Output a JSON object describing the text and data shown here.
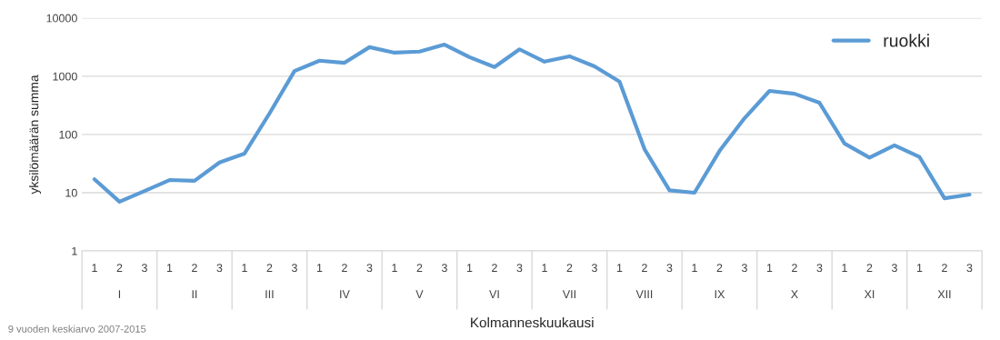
{
  "chart_data": {
    "type": "line",
    "xlabel": "Kolmanneskuukausi",
    "ylabel": "yksilömäärän summa",
    "categories": [
      "1",
      "2",
      "3",
      "1",
      "2",
      "3",
      "1",
      "2",
      "3",
      "1",
      "2",
      "3",
      "1",
      "2",
      "3",
      "1",
      "2",
      "3",
      "1",
      "2",
      "3",
      "1",
      "2",
      "3",
      "1",
      "2",
      "3",
      "1",
      "2",
      "3",
      "1",
      "2",
      "3",
      "1",
      "2",
      "3"
    ],
    "series": [
      {
        "name": "ruokki",
        "color": "#5b9bd5",
        "values": [
          17,
          7,
          10.7,
          16.5,
          16,
          33,
          47,
          230,
          1230,
          1850,
          1700,
          3160,
          2540,
          2650,
          3500,
          2130,
          1440,
          2900,
          1780,
          2200,
          1480,
          810,
          56,
          11,
          10,
          52,
          190,
          560,
          500,
          350,
          70,
          40,
          65,
          41,
          8,
          9.3
        ]
      }
    ],
    "annotations": [
      "I",
      "II",
      "III",
      "IV",
      "V",
      "VI",
      "VII",
      "VIII",
      "IX",
      "X",
      "XI",
      "XII",
      "9 vuoden keskiarvo 2007-2015"
    ],
    "log": "y",
    "ylim": [
      1,
      10000
    ],
    "yticks": [
      1,
      10,
      100,
      1000,
      10000
    ],
    "grid": "y",
    "legend": "top right",
    "marker": "none",
    "line_style": "solid"
  }
}
